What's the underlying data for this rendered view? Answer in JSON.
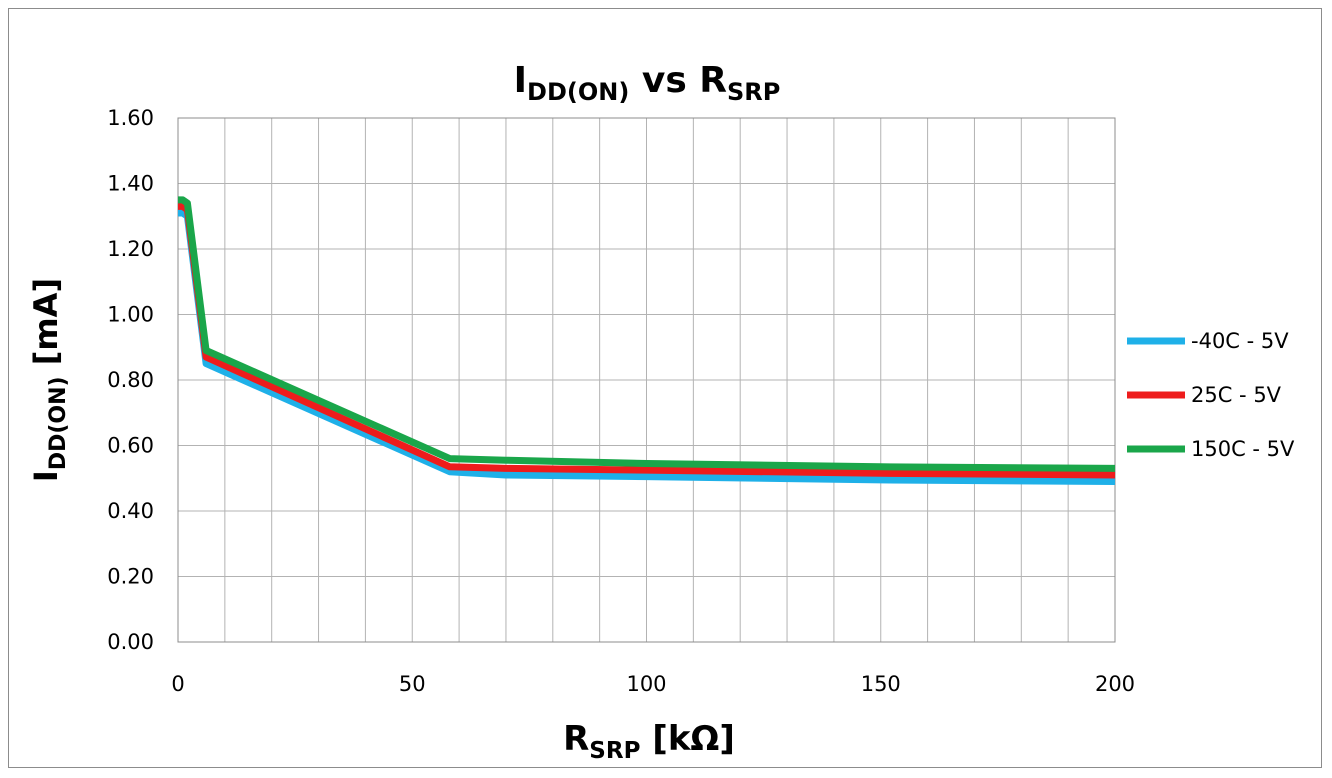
{
  "chart_data": {
    "type": "line",
    "title": {
      "main": "I",
      "main_sub": "DD(ON)",
      "mid": " vs R",
      "tail_sub": "SRP"
    },
    "ylabel": {
      "main": "I",
      "sub": "DD(ON)",
      "tail": " [mA]"
    },
    "xlabel": {
      "main": "R",
      "sub": "SRP",
      "tail": " [kΩ]"
    },
    "xlim": [
      0,
      200
    ],
    "ylim": [
      0,
      1.6
    ],
    "x_ticks": [
      0,
      50,
      100,
      150,
      200
    ],
    "x_tick_labels": [
      "0",
      "50",
      "100",
      "150",
      "200"
    ],
    "x_grid_step": 10,
    "y_ticks": [
      0,
      0.2,
      0.4,
      0.6,
      0.8,
      1.0,
      1.2,
      1.4,
      1.6
    ],
    "y_tick_labels": [
      "0.00",
      "0.20",
      "0.40",
      "0.60",
      "0.80",
      "1.00",
      "1.20",
      "1.40",
      "1.60"
    ],
    "grid": true,
    "legend_position": "right",
    "series": [
      {
        "name": "-40C - 5V",
        "color": "#1fb0e8",
        "x": [
          0,
          1,
          2,
          6,
          58,
          70,
          100,
          150,
          200
        ],
        "y": [
          1.31,
          1.31,
          1.3,
          0.85,
          0.52,
          0.51,
          0.505,
          0.495,
          0.49
        ]
      },
      {
        "name": "25C - 5V",
        "color": "#ee1c1c",
        "x": [
          0,
          1,
          2,
          6,
          58,
          70,
          100,
          150,
          200
        ],
        "y": [
          1.33,
          1.33,
          1.32,
          0.87,
          0.535,
          0.53,
          0.525,
          0.515,
          0.51
        ]
      },
      {
        "name": "150C - 5V",
        "color": "#1aa64a",
        "x": [
          0,
          1,
          2,
          6,
          58,
          70,
          100,
          150,
          200
        ],
        "y": [
          1.35,
          1.35,
          1.34,
          0.89,
          0.56,
          0.555,
          0.545,
          0.535,
          0.53
        ]
      }
    ]
  }
}
